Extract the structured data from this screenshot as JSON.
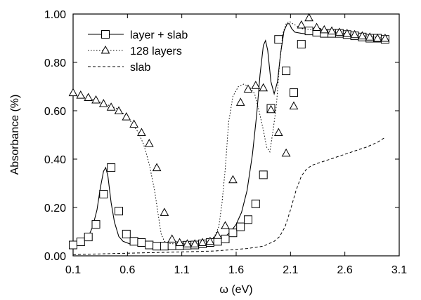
{
  "chart_data": {
    "type": "line",
    "xlabel": "ω (eV)",
    "ylabel": "Absorbance (%)",
    "xlim": [
      0.1,
      3.1
    ],
    "ylim": [
      0.0,
      1.0
    ],
    "x_ticks": [
      "0.1",
      "0.6",
      "1.1",
      "1.6",
      "2.1",
      "2.6",
      "3.1"
    ],
    "y_ticks": [
      "0.00",
      "0.20",
      "0.40",
      "0.60",
      "0.80",
      "1.00"
    ],
    "grid": false,
    "legend_position": "top-left",
    "series": [
      {
        "name": "layer + slab",
        "line_style": "solid",
        "marker": "square",
        "line_x": [
          0.1,
          0.18,
          0.24,
          0.28,
          0.32,
          0.35,
          0.38,
          0.4,
          0.42,
          0.45,
          0.48,
          0.52,
          0.56,
          0.62,
          0.7,
          0.8,
          0.9,
          1.0,
          1.1,
          1.2,
          1.3,
          1.4,
          1.5,
          1.55,
          1.6,
          1.65,
          1.7,
          1.75,
          1.79,
          1.82,
          1.85,
          1.87,
          1.89,
          1.92,
          1.95,
          1.98,
          2.01,
          2.04,
          2.07,
          2.09,
          2.11,
          2.14,
          2.2,
          2.3,
          2.5,
          2.7,
          2.95
        ],
        "line_y": [
          0.04,
          0.06,
          0.08,
          0.12,
          0.19,
          0.28,
          0.35,
          0.365,
          0.33,
          0.22,
          0.14,
          0.08,
          0.06,
          0.05,
          0.045,
          0.04,
          0.04,
          0.04,
          0.04,
          0.045,
          0.05,
          0.06,
          0.08,
          0.1,
          0.13,
          0.18,
          0.27,
          0.42,
          0.59,
          0.75,
          0.87,
          0.89,
          0.85,
          0.72,
          0.67,
          0.72,
          0.84,
          0.93,
          0.96,
          0.96,
          0.94,
          0.925,
          0.92,
          0.915,
          0.91,
          0.905,
          0.9
        ],
        "markers_x": [
          0.1,
          0.17,
          0.24,
          0.31,
          0.38,
          0.45,
          0.52,
          0.59,
          0.66,
          0.73,
          0.8,
          0.87,
          0.94,
          1.01,
          1.08,
          1.15,
          1.22,
          1.29,
          1.36,
          1.43,
          1.5,
          1.57,
          1.64,
          1.71,
          1.78,
          1.85,
          1.92,
          1.99,
          2.06,
          2.13,
          2.2,
          2.27,
          2.34,
          2.41,
          2.48,
          2.55,
          2.62,
          2.69,
          2.76,
          2.83,
          2.9,
          2.97
        ],
        "markers_y": [
          0.045,
          0.058,
          0.078,
          0.13,
          0.255,
          0.365,
          0.185,
          0.09,
          0.06,
          0.055,
          0.045,
          0.04,
          0.04,
          0.042,
          0.042,
          0.044,
          0.045,
          0.05,
          0.055,
          0.06,
          0.07,
          0.095,
          0.12,
          0.15,
          0.215,
          0.335,
          0.61,
          0.895,
          0.765,
          0.675,
          0.875,
          0.93,
          0.925,
          0.92,
          0.92,
          0.92,
          0.915,
          0.91,
          0.905,
          0.9,
          0.9,
          0.895
        ]
      },
      {
        "name": "128 layers",
        "line_style": "dotted",
        "marker": "triangle",
        "line_x": [
          0.1,
          0.3,
          0.5,
          0.6,
          0.7,
          0.75,
          0.8,
          0.85,
          0.88,
          0.91,
          0.94,
          0.97,
          1.0,
          1.1,
          1.2,
          1.3,
          1.35,
          1.4,
          1.44,
          1.47,
          1.5,
          1.53,
          1.57,
          1.62,
          1.67,
          1.72,
          1.77,
          1.81,
          1.85,
          1.88,
          1.91,
          1.94,
          1.97,
          2.0,
          2.03,
          2.06,
          2.09,
          2.12,
          2.2,
          2.4,
          2.6,
          2.8,
          2.95
        ],
        "line_y": [
          0.665,
          0.645,
          0.61,
          0.575,
          0.51,
          0.46,
          0.38,
          0.27,
          0.18,
          0.09,
          0.06,
          0.055,
          0.05,
          0.05,
          0.05,
          0.055,
          0.065,
          0.08,
          0.12,
          0.22,
          0.36,
          0.55,
          0.66,
          0.7,
          0.71,
          0.7,
          0.67,
          0.6,
          0.52,
          0.45,
          0.43,
          0.52,
          0.62,
          0.8,
          0.92,
          0.96,
          0.97,
          0.96,
          0.94,
          0.93,
          0.92,
          0.91,
          0.9
        ],
        "markers_x": [
          0.1,
          0.17,
          0.24,
          0.31,
          0.38,
          0.45,
          0.52,
          0.59,
          0.66,
          0.73,
          0.8,
          0.87,
          0.94,
          1.01,
          1.08,
          1.15,
          1.22,
          1.29,
          1.36,
          1.43,
          1.5,
          1.57,
          1.64,
          1.71,
          1.78,
          1.85,
          1.92,
          1.99,
          2.06,
          2.13,
          2.2,
          2.27,
          2.34,
          2.41,
          2.48,
          2.55,
          2.62,
          2.69,
          2.76,
          2.83,
          2.9,
          2.97
        ],
        "markers_y": [
          0.675,
          0.665,
          0.655,
          0.645,
          0.63,
          0.615,
          0.6,
          0.575,
          0.545,
          0.51,
          0.465,
          0.365,
          0.18,
          0.07,
          0.055,
          0.05,
          0.05,
          0.055,
          0.06,
          0.085,
          0.125,
          0.315,
          0.635,
          0.69,
          0.705,
          0.695,
          0.605,
          0.51,
          0.425,
          0.62,
          0.955,
          0.985,
          0.945,
          0.935,
          0.93,
          0.925,
          0.92,
          0.915,
          0.91,
          0.905,
          0.9,
          0.9
        ]
      },
      {
        "name": "slab",
        "line_style": "dashed",
        "marker": "none",
        "line_x": [
          0.1,
          0.5,
          1.0,
          1.4,
          1.7,
          1.85,
          1.95,
          2.0,
          2.05,
          2.1,
          2.15,
          2.2,
          2.25,
          2.3,
          2.4,
          2.5,
          2.6,
          2.7,
          2.8,
          2.9,
          2.97
        ],
        "line_y": [
          0.005,
          0.01,
          0.015,
          0.02,
          0.03,
          0.04,
          0.06,
          0.08,
          0.12,
          0.19,
          0.27,
          0.33,
          0.36,
          0.375,
          0.39,
          0.405,
          0.42,
          0.435,
          0.45,
          0.47,
          0.49
        ]
      }
    ]
  }
}
